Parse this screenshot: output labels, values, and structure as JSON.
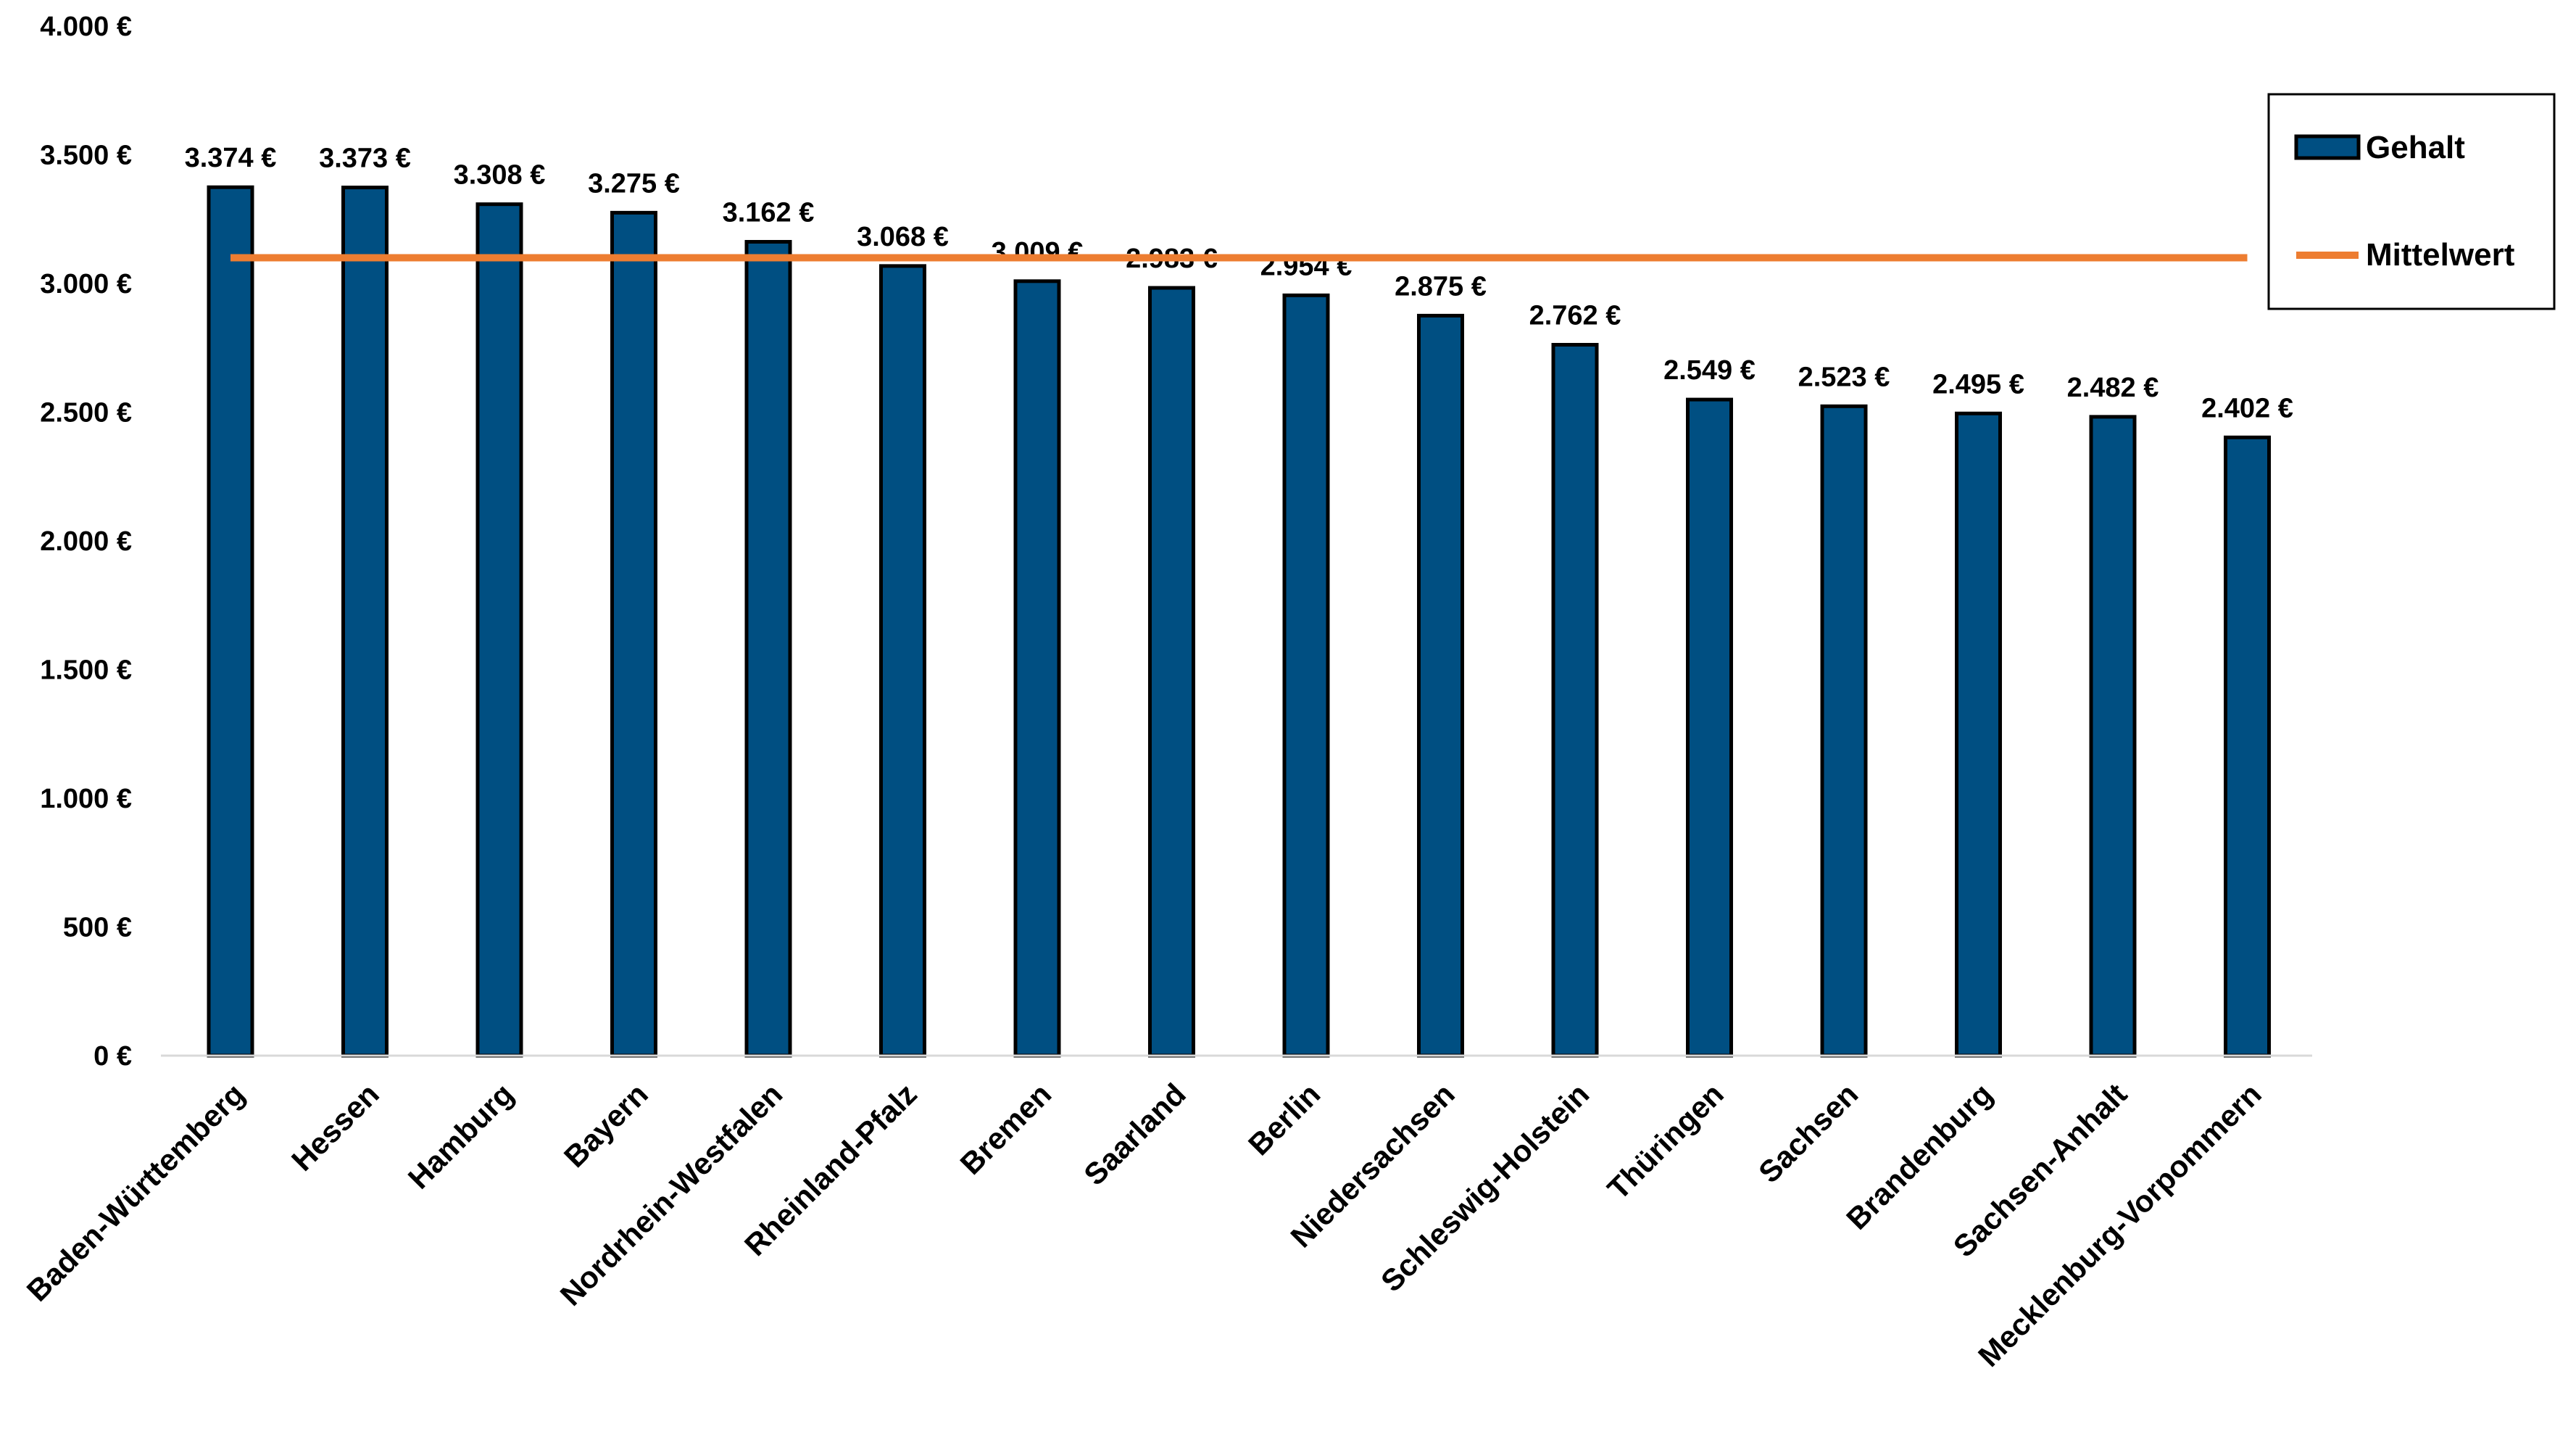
{
  "chart_data": {
    "type": "bar",
    "categories": [
      "Baden-Württemberg",
      "Hessen",
      "Hamburg",
      "Bayern",
      "Nordrhein-Westfalen",
      "Rheinland-Pfalz",
      "Bremen",
      "Saarland",
      "Berlin",
      "Niedersachsen",
      "Schleswig-Holstein",
      "Thüringen",
      "Sachsen",
      "Brandenburg",
      "Sachsen-Anhalt",
      "Mecklenburg-Vorpommern"
    ],
    "series": [
      {
        "name": "Gehalt",
        "type": "bar",
        "values": [
          3374,
          3373,
          3308,
          3275,
          3162,
          3068,
          3009,
          2983,
          2954,
          2875,
          2762,
          2549,
          2523,
          2495,
          2482,
          2402
        ],
        "labels": [
          "3.374 €",
          "3.373 €",
          "3.308 €",
          "3.275 €",
          "3.162 €",
          "3.068 €",
          "3.009 €",
          "2.983 €",
          "2.954 €",
          "2.875 €",
          "2.762 €",
          "2.549 €",
          "2.523 €",
          "2.495 €",
          "2.482 €",
          "2.402 €"
        ],
        "color": "#004F82"
      },
      {
        "name": "Mittelwert",
        "type": "line",
        "value": 3100,
        "color": "#ED7D31"
      }
    ],
    "ylim": [
      0,
      4000
    ],
    "yticks": [
      0,
      500,
      1000,
      1500,
      2000,
      2500,
      3000,
      3500,
      4000
    ],
    "ytick_labels": [
      "0 €",
      "500 €",
      "1.000 €",
      "1.500 €",
      "2.000 €",
      "2.500 €",
      "3.000 €",
      "3.500 €",
      "4.000 €"
    ],
    "grid": false,
    "legend_position": "top-right",
    "title": "",
    "xlabel": "",
    "ylabel": ""
  }
}
